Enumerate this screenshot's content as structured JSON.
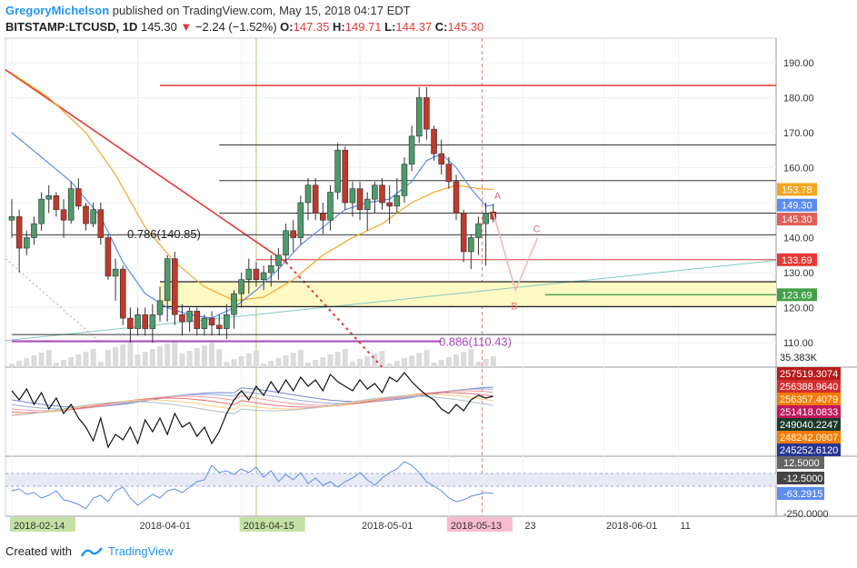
{
  "header": {
    "user": "GregoryMichelson",
    "published": "published on TradingView.com, May 15, 2018 04:17 EDT",
    "symbol": "BITSTAMP:LTCUSD, 1D",
    "last": "145.30",
    "change": "−2.24 (−1.52%)",
    "o_label": "O:",
    "o": "147.35",
    "h_label": "H:",
    "h": "149.71",
    "l_label": "L:",
    "l": "144.37",
    "c_label": "C:",
    "c": "145.30"
  },
  "footer": {
    "created_with": "Created with",
    "brand": "TradingView"
  },
  "colors": {
    "up": "#4e9a6b",
    "down": "#c0392b",
    "resistance": "#e53935",
    "support": "#43a047",
    "ma_fast": "#5b8def",
    "ma_slow": "#f5a623",
    "fib": "#ab47bc",
    "zone": "#fff9c4"
  },
  "chart_data": {
    "type": "candlestick",
    "y_ticks": [
      "190.00",
      "180.00",
      "170.00",
      "160.00",
      "150.00",
      "140.00",
      "130.00",
      "120.00",
      "110.00"
    ],
    "y_ticks_values": [
      190,
      180,
      170,
      160,
      150,
      140,
      130,
      120,
      110
    ],
    "ylim": [
      103,
      197
    ],
    "x_labels": [
      "2018-02-14",
      "2018-04-01",
      "2018-04-15",
      "2018-05-01",
      "2018-05-13",
      "23",
      "2018-06-01",
      "11"
    ],
    "x_labels_day": [
      0,
      17,
      31,
      47,
      59,
      69,
      80,
      90
    ],
    "price_tags": [
      {
        "label": "153.78",
        "value": 153.78,
        "color": "#f5a623"
      },
      {
        "label": "149.30",
        "value": 149.3,
        "color": "#5b8def"
      },
      {
        "label": "145.30",
        "value": 145.3,
        "color": "#e05e57"
      },
      {
        "label": "133.69",
        "value": 133.69,
        "color": "#e53935"
      },
      {
        "label": "123.69",
        "value": 123.69,
        "color": "#43a047"
      }
    ],
    "annotations": {
      "fib_786": "0.786(140.85)",
      "fib_886": "0.886(110.43)",
      "wave_a": "A",
      "wave_b": "B",
      "wave_c": "C"
    },
    "volume_label": "35.383K",
    "osc1_labels": [
      "257519.3074",
      "256388.9640",
      "256357.4079",
      "251418.0833",
      "249040.2247",
      "248242.0907",
      "245252.6120"
    ],
    "osc2_labels": [
      "12.5000",
      "-12.5000",
      "-63.2915",
      "-250.0000"
    ],
    "candles": [
      [
        0,
        145,
        151,
        140,
        146
      ],
      [
        1,
        146,
        148,
        130,
        137
      ],
      [
        2,
        137,
        142,
        135,
        140
      ],
      [
        3,
        140,
        146,
        138,
        144
      ],
      [
        4,
        144,
        153,
        142,
        151
      ],
      [
        5,
        151,
        155,
        147,
        152
      ],
      [
        6,
        152,
        153,
        146,
        148
      ],
      [
        7,
        148,
        151,
        140,
        145
      ],
      [
        8,
        145,
        156,
        144,
        154
      ],
      [
        9,
        154,
        157,
        148,
        149
      ],
      [
        10,
        149,
        150,
        142,
        144
      ],
      [
        11,
        144,
        150,
        143,
        148
      ],
      [
        12,
        148,
        150,
        138,
        140
      ],
      [
        13,
        140,
        141,
        128,
        129
      ],
      [
        14,
        129,
        134,
        122,
        131
      ],
      [
        15,
        131,
        132,
        115,
        117
      ],
      [
        16,
        117,
        120,
        110,
        114
      ],
      [
        17,
        114,
        120,
        112,
        118
      ],
      [
        18,
        118,
        120,
        112,
        114
      ],
      [
        19,
        114,
        121,
        110,
        118
      ],
      [
        20,
        118,
        126,
        116,
        122
      ],
      [
        21,
        122,
        135,
        116,
        134
      ],
      [
        22,
        134,
        136,
        115,
        118
      ],
      [
        23,
        118,
        121,
        112,
        116
      ],
      [
        24,
        116,
        120,
        113,
        119
      ],
      [
        25,
        119,
        120,
        112,
        114
      ],
      [
        26,
        114,
        118,
        112,
        117
      ],
      [
        27,
        117,
        119,
        112,
        115
      ],
      [
        28,
        115,
        118,
        112,
        114
      ],
      [
        29,
        114,
        121,
        111,
        118
      ],
      [
        30,
        118,
        125,
        114,
        124
      ],
      [
        31,
        124,
        130,
        120,
        128
      ],
      [
        32,
        128,
        134,
        124,
        131
      ],
      [
        33,
        131,
        133,
        126,
        128
      ],
      [
        34,
        128,
        132,
        125,
        130
      ],
      [
        35,
        130,
        135,
        126,
        132
      ],
      [
        36,
        132,
        137,
        128,
        135
      ],
      [
        37,
        135,
        144,
        133,
        142
      ],
      [
        38,
        142,
        145,
        136,
        140
      ],
      [
        39,
        140,
        152,
        138,
        150
      ],
      [
        40,
        150,
        157,
        145,
        155
      ],
      [
        41,
        155,
        157,
        145,
        147
      ],
      [
        42,
        147,
        150,
        141,
        145
      ],
      [
        43,
        145,
        155,
        142,
        153
      ],
      [
        44,
        153,
        167,
        151,
        165
      ],
      [
        45,
        165,
        166,
        148,
        150
      ],
      [
        46,
        150,
        156,
        146,
        154
      ],
      [
        47,
        154,
        156,
        145,
        148
      ],
      [
        48,
        148,
        153,
        142,
        151
      ],
      [
        49,
        151,
        156,
        147,
        155
      ],
      [
        50,
        155,
        157,
        148,
        150
      ],
      [
        51,
        150,
        155,
        144,
        149
      ],
      [
        52,
        149,
        157,
        147,
        152
      ],
      [
        53,
        152,
        163,
        150,
        161
      ],
      [
        54,
        161,
        172,
        159,
        169
      ],
      [
        55,
        169,
        183,
        167,
        180
      ],
      [
        56,
        180,
        183,
        168,
        171
      ],
      [
        57,
        171,
        172,
        162,
        164
      ],
      [
        58,
        164,
        168,
        158,
        161
      ],
      [
        59,
        161,
        163,
        154,
        156
      ],
      [
        60,
        156,
        158,
        145,
        147
      ],
      [
        61,
        147,
        148,
        133,
        136
      ],
      [
        62,
        136,
        141,
        131,
        140
      ],
      [
        63,
        140,
        146,
        135,
        144
      ],
      [
        64,
        144,
        150,
        132,
        147
      ],
      [
        65,
        147.35,
        149.71,
        144.37,
        145.3
      ]
    ],
    "ma_fast": [
      [
        0,
        170
      ],
      [
        4,
        163
      ],
      [
        8,
        156
      ],
      [
        12,
        146
      ],
      [
        15,
        133
      ],
      [
        18,
        124
      ],
      [
        21,
        120
      ],
      [
        24,
        118
      ],
      [
        27,
        117
      ],
      [
        30,
        120
      ],
      [
        33,
        125
      ],
      [
        36,
        131
      ],
      [
        39,
        138
      ],
      [
        42,
        143
      ],
      [
        45,
        148
      ],
      [
        48,
        150
      ],
      [
        51,
        151
      ],
      [
        54,
        156
      ],
      [
        56,
        162
      ],
      [
        58,
        164
      ],
      [
        60,
        160
      ],
      [
        62,
        154
      ],
      [
        64,
        149
      ],
      [
        65,
        149.3
      ]
    ],
    "ma_slow": [
      [
        0,
        187
      ],
      [
        5,
        180
      ],
      [
        10,
        170
      ],
      [
        14,
        158
      ],
      [
        18,
        143
      ],
      [
        22,
        133
      ],
      [
        26,
        126
      ],
      [
        30,
        122
      ],
      [
        34,
        123
      ],
      [
        38,
        128
      ],
      [
        42,
        135
      ],
      [
        46,
        140
      ],
      [
        50,
        144
      ],
      [
        54,
        150
      ],
      [
        57,
        153
      ],
      [
        60,
        155
      ],
      [
        63,
        154
      ],
      [
        65,
        153.78
      ]
    ],
    "wave_path": [
      [
        65,
        147
      ],
      [
        68,
        125
      ],
      [
        71,
        140
      ]
    ],
    "horizontal_lines": [
      {
        "value": 183.5,
        "from": 20,
        "color": "#e53935",
        "width": 1.5
      },
      {
        "value": 166.5,
        "from": 28,
        "color": "#333",
        "width": 1
      },
      {
        "value": 156.3,
        "from": 28,
        "color": "#333",
        "width": 1
      },
      {
        "value": 147.0,
        "from": 28,
        "color": "#333",
        "width": 1
      },
      {
        "value": 140.8,
        "from": 0,
        "color": "#333",
        "width": 1
      },
      {
        "value": 133.69,
        "from": 33,
        "color": "#e53935",
        "width": 1
      },
      {
        "value": 127.4,
        "from": 20,
        "color": "#222",
        "width": 1.3
      },
      {
        "value": 123.69,
        "from": 72,
        "color": "#43a047",
        "width": 1.3
      },
      {
        "value": 120.3,
        "from": 20,
        "color": "#222",
        "width": 1.3
      },
      {
        "value": 112.3,
        "from": 0,
        "color": "#333",
        "width": 1
      },
      {
        "value": 110.4,
        "from": 0,
        "to": 58,
        "color": "#ab47bc",
        "width": 2
      }
    ]
  }
}
